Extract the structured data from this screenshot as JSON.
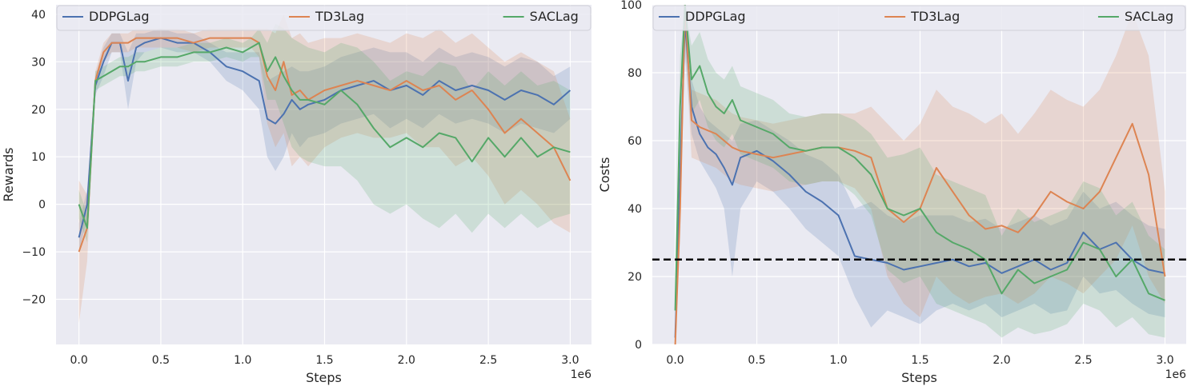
{
  "chart_data": [
    {
      "type": "line",
      "xlabel": "Steps",
      "ylabel": "Rewards",
      "x_offset_label": "1e6",
      "xlim": [
        -0.14,
        3.13
      ],
      "ylim": [
        -29.5,
        42
      ],
      "x_ticks": [
        0.0,
        0.5,
        1.0,
        1.5,
        2.0,
        2.5,
        3.0
      ],
      "x_tick_labels": [
        "0.0",
        "0.5",
        "1.0",
        "1.5",
        "2.0",
        "2.5",
        "3.0"
      ],
      "y_ticks": [
        -20,
        -10,
        0,
        10,
        20,
        30,
        40
      ],
      "y_tick_labels": [
        "−20",
        "−10",
        "0",
        "10",
        "20",
        "30",
        "40"
      ],
      "grid": true,
      "legend_position": "top",
      "x": [
        0.0,
        0.05,
        0.1,
        0.15,
        0.2,
        0.25,
        0.3,
        0.35,
        0.4,
        0.5,
        0.6,
        0.7,
        0.8,
        0.9,
        1.0,
        1.05,
        1.1,
        1.15,
        1.2,
        1.25,
        1.3,
        1.35,
        1.4,
        1.5,
        1.6,
        1.7,
        1.8,
        1.9,
        2.0,
        2.1,
        2.2,
        2.3,
        2.4,
        2.5,
        2.6,
        2.7,
        2.8,
        2.9,
        3.0
      ],
      "series": [
        {
          "name": "DDPGLag",
          "color": "#4c72b0",
          "values": [
            -7,
            0,
            25,
            30,
            34,
            34,
            26,
            33,
            34,
            35,
            34,
            34,
            32,
            29,
            28,
            27,
            26,
            18,
            17,
            19,
            22,
            20,
            21,
            22,
            24,
            25,
            26,
            24,
            25,
            23,
            26,
            24,
            25,
            24,
            22,
            24,
            23,
            21,
            24
          ],
          "lower": [
            -10,
            -3,
            23,
            27,
            32,
            32,
            20,
            30,
            32,
            33,
            32,
            32,
            30,
            26,
            24,
            22,
            20,
            10,
            7,
            10,
            15,
            12,
            14,
            15,
            17,
            18,
            19,
            16,
            18,
            16,
            19,
            17,
            18,
            17,
            15,
            17,
            16,
            15,
            18
          ],
          "upper": [
            -4,
            3,
            27,
            33,
            36,
            36,
            32,
            36,
            36,
            37,
            36,
            36,
            34,
            32,
            32,
            32,
            32,
            26,
            27,
            28,
            29,
            28,
            28,
            29,
            31,
            32,
            33,
            32,
            32,
            30,
            33,
            31,
            32,
            31,
            29,
            31,
            30,
            27,
            29
          ]
        },
        {
          "name": "TD3Lag",
          "color": "#dd8452",
          "values": [
            -10,
            -5,
            26,
            32,
            34,
            34,
            34,
            35,
            35,
            35,
            35,
            34,
            35,
            35,
            35,
            35,
            34,
            27,
            24,
            30,
            23,
            24,
            22,
            24,
            25,
            26,
            25,
            24,
            26,
            24,
            25,
            22,
            24,
            20,
            15,
            18,
            15,
            12,
            5
          ],
          "lower": [
            -25,
            -12,
            24,
            30,
            32,
            32,
            32,
            33,
            33,
            33,
            33,
            32,
            33,
            33,
            33,
            33,
            31,
            17,
            12,
            15,
            8,
            10,
            8,
            12,
            14,
            15,
            14,
            14,
            15,
            12,
            12,
            8,
            10,
            6,
            0,
            3,
            0,
            -4,
            -6
          ],
          "upper": [
            5,
            2,
            28,
            34,
            36,
            36,
            36,
            37,
            37,
            37,
            37,
            36,
            37,
            37,
            37,
            37,
            37,
            37,
            36,
            40,
            35,
            36,
            34,
            35,
            35,
            36,
            35,
            34,
            36,
            35,
            37,
            34,
            36,
            33,
            30,
            32,
            30,
            28,
            18
          ]
        },
        {
          "name": "SACLag",
          "color": "#55a868",
          "values": [
            0,
            -5,
            26,
            27,
            28,
            29,
            29,
            30,
            30,
            31,
            31,
            32,
            32,
            33,
            32,
            33,
            34,
            28,
            31,
            27,
            24,
            22,
            22,
            21,
            24,
            21,
            16,
            12,
            14,
            12,
            15,
            14,
            9,
            14,
            10,
            14,
            10,
            12,
            11
          ],
          "lower": [
            -3,
            -8,
            24,
            25,
            26,
            27,
            27,
            28,
            28,
            29,
            29,
            30,
            30,
            31,
            30,
            31,
            31,
            22,
            22,
            17,
            12,
            10,
            9,
            8,
            8,
            5,
            0,
            -2,
            0,
            -3,
            -5,
            -2,
            -6,
            -2,
            -5,
            -2,
            -5,
            -3,
            -2
          ],
          "upper": [
            3,
            -2,
            28,
            29,
            30,
            31,
            31,
            32,
            32,
            33,
            33,
            34,
            34,
            35,
            34,
            35,
            37,
            34,
            38,
            37,
            35,
            34,
            33,
            32,
            34,
            33,
            30,
            26,
            28,
            27,
            30,
            29,
            24,
            28,
            25,
            28,
            25,
            26,
            24
          ]
        }
      ]
    },
    {
      "type": "line",
      "xlabel": "Steps",
      "ylabel": "Costs",
      "x_offset_label": "1e6",
      "xlim": [
        -0.14,
        3.13
      ],
      "ylim": [
        0,
        100
      ],
      "x_ticks": [
        0.0,
        0.5,
        1.0,
        1.5,
        2.0,
        2.5,
        3.0
      ],
      "x_tick_labels": [
        "0.0",
        "0.5",
        "1.0",
        "1.5",
        "2.0",
        "2.5",
        "3.0"
      ],
      "y_ticks": [
        0,
        20,
        40,
        60,
        80,
        100
      ],
      "y_tick_labels": [
        "0",
        "20",
        "40",
        "60",
        "80",
        "100"
      ],
      "grid": true,
      "legend_position": "top",
      "threshold": 25,
      "x": [
        0.0,
        0.03,
        0.06,
        0.1,
        0.15,
        0.2,
        0.25,
        0.3,
        0.35,
        0.4,
        0.5,
        0.6,
        0.7,
        0.8,
        0.9,
        1.0,
        1.1,
        1.2,
        1.3,
        1.4,
        1.5,
        1.6,
        1.7,
        1.8,
        1.9,
        2.0,
        2.1,
        2.2,
        2.3,
        2.4,
        2.5,
        2.6,
        2.7,
        2.8,
        2.9,
        3.0
      ],
      "series": [
        {
          "name": "DDPGLag",
          "color": "#4c72b0",
          "values": [
            2,
            50,
            95,
            70,
            62,
            58,
            56,
            52,
            47,
            55,
            57,
            54,
            50,
            45,
            42,
            38,
            26,
            25,
            24,
            22,
            23,
            24,
            25,
            23,
            24,
            21,
            23,
            25,
            22,
            24,
            33,
            28,
            30,
            25,
            22,
            21
          ],
          "lower": [
            0,
            40,
            85,
            62,
            54,
            50,
            46,
            40,
            20,
            40,
            48,
            45,
            40,
            34,
            30,
            26,
            14,
            5,
            10,
            8,
            6,
            10,
            12,
            10,
            12,
            8,
            10,
            12,
            9,
            10,
            20,
            15,
            16,
            12,
            9,
            8
          ],
          "upper": [
            5,
            60,
            100,
            78,
            70,
            66,
            64,
            62,
            60,
            65,
            66,
            63,
            60,
            56,
            54,
            50,
            40,
            42,
            38,
            36,
            38,
            38,
            38,
            36,
            37,
            34,
            36,
            38,
            35,
            37,
            45,
            40,
            42,
            38,
            35,
            34
          ]
        },
        {
          "name": "TD3Lag",
          "color": "#dd8452",
          "values": [
            0,
            40,
            100,
            66,
            64,
            63,
            62,
            60,
            58,
            57,
            56,
            55,
            56,
            57,
            58,
            58,
            57,
            55,
            40,
            36,
            40,
            52,
            45,
            38,
            34,
            35,
            33,
            38,
            45,
            42,
            40,
            45,
            55,
            65,
            50,
            20
          ],
          "lower": [
            0,
            30,
            90,
            55,
            54,
            53,
            52,
            50,
            48,
            47,
            46,
            45,
            46,
            47,
            48,
            48,
            46,
            40,
            20,
            12,
            8,
            20,
            15,
            12,
            14,
            15,
            12,
            15,
            20,
            18,
            15,
            20,
            25,
            35,
            20,
            12
          ],
          "upper": [
            3,
            55,
            100,
            75,
            74,
            73,
            72,
            70,
            68,
            67,
            66,
            65,
            66,
            67,
            68,
            68,
            68,
            70,
            65,
            60,
            65,
            75,
            70,
            68,
            65,
            68,
            62,
            68,
            75,
            72,
            70,
            75,
            85,
            98,
            85,
            45
          ]
        },
        {
          "name": "SACLag",
          "color": "#55a868",
          "values": [
            10,
            70,
            100,
            78,
            82,
            74,
            70,
            68,
            72,
            66,
            64,
            62,
            58,
            57,
            58,
            58,
            55,
            50,
            40,
            38,
            40,
            33,
            30,
            28,
            25,
            15,
            22,
            18,
            20,
            22,
            30,
            28,
            20,
            25,
            15,
            13
          ],
          "lower": [
            5,
            55,
            90,
            68,
            72,
            64,
            60,
            58,
            62,
            56,
            54,
            52,
            48,
            47,
            48,
            48,
            44,
            38,
            22,
            18,
            20,
            12,
            10,
            8,
            6,
            2,
            5,
            3,
            4,
            6,
            12,
            10,
            5,
            8,
            3,
            2
          ],
          "upper": [
            15,
            85,
            100,
            88,
            92,
            84,
            80,
            78,
            82,
            76,
            74,
            72,
            68,
            67,
            68,
            68,
            66,
            62,
            55,
            56,
            58,
            50,
            48,
            46,
            44,
            32,
            40,
            36,
            38,
            40,
            48,
            46,
            38,
            42,
            32,
            28
          ]
        }
      ]
    }
  ]
}
